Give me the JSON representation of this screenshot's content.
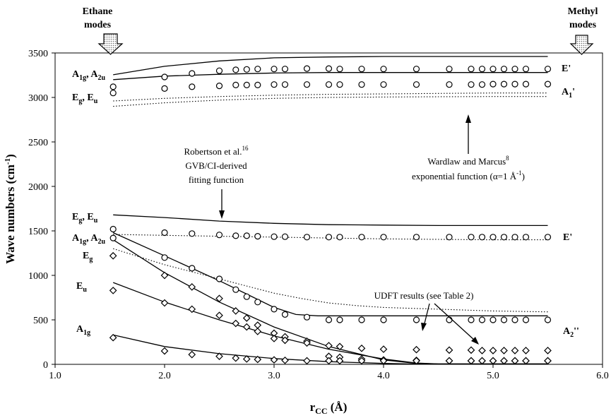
{
  "chart_data": {
    "type": "scatter",
    "xlabel": "r",
    "xlabel_sub": "CC",
    "xlabel_unit": " (Å)",
    "ylabel": "Wave numbers (cm",
    "ylabel_sup": "-1",
    "ylabel_end": ")",
    "xlim": [
      1.0,
      6.0
    ],
    "ylim": [
      0,
      3500
    ],
    "xticks": [
      {
        "v": 1.0,
        "label": "1.0"
      },
      {
        "v": 2.0,
        "label": "2.0"
      },
      {
        "v": 3.0,
        "label": "3.0"
      },
      {
        "v": 4.0,
        "label": "4.0"
      },
      {
        "v": 5.0,
        "label": "5.0"
      },
      {
        "v": 6.0,
        "label": "6.0"
      }
    ],
    "yticks": [
      {
        "v": 0,
        "label": "0"
      },
      {
        "v": 500,
        "label": "500"
      },
      {
        "v": 1000,
        "label": "1000"
      },
      {
        "v": 1500,
        "label": "1500"
      },
      {
        "v": 2000,
        "label": "2000"
      },
      {
        "v": 2500,
        "label": "2500"
      },
      {
        "v": 3000,
        "label": "3000"
      },
      {
        "v": 3500,
        "label": "3500"
      }
    ],
    "grid": false,
    "circle_series": [
      {
        "x": [
          1.53,
          2.0,
          2.25,
          2.5,
          2.65,
          2.75,
          2.85,
          3.0,
          3.1,
          3.3,
          3.5,
          3.6,
          3.8,
          4.0,
          4.3,
          4.6,
          4.8,
          4.9,
          5.0,
          5.1,
          5.2,
          5.3,
          5.5
        ],
        "y": [
          3120,
          3230,
          3270,
          3300,
          3310,
          3315,
          3320,
          3320,
          3320,
          3325,
          3325,
          3320,
          3320,
          3320,
          3320,
          3320,
          3320,
          3320,
          3320,
          3320,
          3320,
          3320,
          3320
        ]
      },
      {
        "x": [
          1.53,
          2.0,
          2.25,
          2.5,
          2.65,
          2.75,
          2.85,
          3.0,
          3.1,
          3.3,
          3.5,
          3.6,
          3.8,
          4.0,
          4.3,
          4.6,
          4.8,
          4.9,
          5.0,
          5.1,
          5.2,
          5.3,
          5.5
        ],
        "y": [
          3050,
          3100,
          3120,
          3130,
          3140,
          3140,
          3140,
          3145,
          3145,
          3145,
          3145,
          3145,
          3145,
          3145,
          3145,
          3145,
          3145,
          3145,
          3150,
          3150,
          3150,
          3150,
          3150
        ]
      },
      {
        "x": [
          1.53,
          2.0,
          2.25,
          2.5,
          2.65,
          2.75,
          2.85,
          3.0,
          3.1,
          3.3,
          3.5,
          3.6,
          3.8,
          4.0,
          4.3,
          4.6,
          4.8,
          4.9,
          5.0,
          5.1,
          5.2,
          5.3,
          5.5
        ],
        "y": [
          1520,
          1480,
          1470,
          1455,
          1445,
          1445,
          1440,
          1435,
          1435,
          1430,
          1430,
          1430,
          1430,
          1430,
          1430,
          1430,
          1430,
          1430,
          1430,
          1430,
          1430,
          1430,
          1430
        ]
      },
      {
        "x": [
          1.53,
          2.0,
          2.25,
          2.5,
          2.65,
          2.75,
          2.85,
          3.0,
          3.1,
          3.3,
          3.5,
          3.6,
          3.8,
          4.0,
          4.3,
          4.6,
          4.8,
          4.9,
          5.0,
          5.1,
          5.2,
          5.3,
          5.5
        ],
        "y": [
          1420,
          1200,
          1080,
          960,
          840,
          760,
          700,
          620,
          560,
          530,
          500,
          500,
          500,
          500,
          500,
          500,
          500,
          500,
          500,
          500,
          500,
          500,
          500
        ]
      }
    ],
    "diamond_series": [
      {
        "x": [
          1.53,
          2.0,
          2.25,
          2.5,
          2.65,
          2.75,
          2.85,
          3.0,
          3.1,
          3.3,
          3.5,
          3.6,
          3.8,
          4.0,
          4.3,
          4.6,
          4.8,
          4.9,
          5.0,
          5.1,
          5.2,
          5.3,
          5.5
        ],
        "y": [
          1220,
          1000,
          870,
          740,
          600,
          520,
          440,
          350,
          310,
          260,
          210,
          200,
          180,
          170,
          165,
          160,
          160,
          155,
          155,
          155,
          155,
          155,
          155
        ]
      },
      {
        "x": [
          1.53,
          2.0,
          2.25,
          2.5,
          2.65,
          2.75,
          2.85,
          3.0,
          3.1,
          3.3,
          3.5,
          3.6,
          3.8,
          4.0,
          4.3,
          4.6,
          4.8,
          4.9,
          5.0,
          5.1,
          5.2,
          5.3,
          5.5
        ],
        "y": [
          830,
          690,
          620,
          550,
          460,
          420,
          370,
          290,
          270,
          240,
          90,
          80,
          60,
          50,
          45,
          40,
          40,
          40,
          40,
          40,
          40,
          40,
          40
        ]
      },
      {
        "x": [
          1.53,
          2.0,
          2.25,
          2.5,
          2.65,
          2.75,
          2.85,
          3.0,
          3.1,
          3.3,
          3.5,
          3.6,
          3.8,
          4.0,
          4.3,
          4.6,
          4.8,
          4.9,
          5.0,
          5.1,
          5.2,
          5.3,
          5.5
        ],
        "y": [
          300,
          150,
          110,
          90,
          70,
          60,
          55,
          50,
          45,
          40,
          40,
          40,
          40,
          40,
          40,
          40,
          40,
          40,
          40,
          40,
          40,
          40,
          40
        ]
      }
    ],
    "solid_lines": [
      {
        "x": [
          1.53,
          2.0,
          2.5,
          3.0,
          3.5,
          4.0,
          4.5,
          5.0,
          5.5
        ],
        "y": [
          3255,
          3350,
          3410,
          3445,
          3455,
          3460,
          3460,
          3460,
          3460
        ]
      },
      {
        "x": [
          1.53,
          2.0,
          2.5,
          3.0,
          3.5,
          4.0,
          4.5,
          5.0,
          5.5
        ],
        "y": [
          3200,
          3240,
          3260,
          3275,
          3280,
          3280,
          3280,
          3280,
          3280
        ]
      },
      {
        "x": [
          1.53,
          2.0,
          2.5,
          3.0,
          3.5,
          4.0,
          4.5,
          5.0,
          5.5
        ],
        "y": [
          1680,
          1650,
          1610,
          1585,
          1570,
          1565,
          1560,
          1560,
          1560
        ]
      },
      {
        "x": [
          1.53,
          2.0,
          2.5,
          2.75,
          3.0,
          3.2,
          3.4,
          3.6,
          4.0,
          4.5,
          5.0,
          5.5
        ],
        "y": [
          1480,
          1220,
          940,
          790,
          640,
          560,
          545,
          545,
          545,
          545,
          545,
          545
        ]
      },
      {
        "x": [
          1.53,
          2.0,
          2.5,
          3.0,
          3.5,
          4.0,
          4.3,
          4.5,
          5.0,
          5.5
        ],
        "y": [
          1400,
          1030,
          700,
          420,
          200,
          50,
          10,
          5,
          5,
          5
        ]
      },
      {
        "x": [
          1.53,
          2.0,
          2.5,
          3.0,
          3.5,
          4.0,
          4.3,
          4.5,
          5.0,
          5.5
        ],
        "y": [
          920,
          700,
          500,
          320,
          170,
          60,
          15,
          5,
          5,
          5
        ]
      },
      {
        "x": [
          1.53,
          2.0,
          2.5,
          3.0,
          3.5,
          4.0,
          4.3,
          4.5,
          5.0,
          5.5
        ],
        "y": [
          330,
          200,
          120,
          65,
          30,
          10,
          3,
          2,
          2,
          2
        ]
      }
    ],
    "dotted_lines": [
      {
        "x": [
          1.53,
          2.0,
          2.5,
          3.0,
          3.5,
          4.0,
          4.5,
          5.0,
          5.5
        ],
        "y": [
          2960,
          2990,
          3010,
          3025,
          3035,
          3040,
          3045,
          3050,
          3050
        ]
      },
      {
        "x": [
          1.53,
          2.0,
          2.5,
          3.0,
          3.5,
          4.0,
          4.5,
          5.0,
          5.5
        ],
        "y": [
          2900,
          2940,
          2970,
          2990,
          3000,
          3005,
          3008,
          3010,
          3010
        ]
      },
      {
        "x": [
          1.53,
          2.0,
          2.5,
          3.0,
          3.5,
          4.0,
          4.5,
          5.0,
          5.5
        ],
        "y": [
          1460,
          1450,
          1440,
          1430,
          1420,
          1410,
          1405,
          1400,
          1400
        ]
      },
      {
        "x": [
          1.53,
          2.0,
          2.5,
          2.75,
          3.0,
          3.25,
          3.5,
          3.75,
          4.0,
          4.5,
          5.0,
          5.5
        ],
        "y": [
          1300,
          1120,
          960,
          880,
          800,
          740,
          690,
          660,
          640,
          620,
          600,
          590
        ]
      }
    ],
    "annotations": {
      "ethane_1": "Ethane",
      "ethane_2": "modes",
      "methyl_1": "Methyl",
      "methyl_2": "modes",
      "wardlaw_1": "Wardlaw and Marcus",
      "wardlaw_1_sup": "8",
      "wardlaw_2": "exponential function (α=1 Å",
      "wardlaw_2_sup": "-1",
      "wardlaw_2_end": ")",
      "robertson_1": "Robertson et al.",
      "robertson_1_sup": "16",
      "robertson_2": "GVB/CI-derived",
      "robertson_3": "fitting function",
      "udft": "UDFT results (see Table 2)"
    },
    "left_labels": [
      {
        "id": "A1g_A2u_top",
        "a": "A",
        "a_sub": "1g",
        "sep": ", ",
        "b": "A",
        "b_sub": "2u"
      },
      {
        "id": "Eg_Eu_top",
        "a": "E",
        "a_sub": "g",
        "sep": ", ",
        "b": "E",
        "b_sub": "u"
      },
      {
        "id": "Eg_Eu_mid",
        "a": "E",
        "a_sub": "g",
        "sep": ", ",
        "b": "E",
        "b_sub": "u"
      },
      {
        "id": "A1g_A2u_mid",
        "a": "A",
        "a_sub": "1g",
        "sep": ", ",
        "b": "A",
        "b_sub": "2u"
      },
      {
        "id": "Eg_low",
        "a": "E",
        "a_sub": "g"
      },
      {
        "id": "Eu_low",
        "a": "E",
        "a_sub": "u"
      },
      {
        "id": "A1g_low",
        "a": "A",
        "a_sub": "1g"
      }
    ],
    "right_labels": [
      {
        "id": "E_prime_top",
        "text": "E'"
      },
      {
        "id": "A1_prime",
        "text": "A",
        "sub": "1",
        "after": "'"
      },
      {
        "id": "E_prime_mid",
        "text": "E'"
      },
      {
        "id": "A2_dprime",
        "text": "A",
        "sub": "2",
        "after": "''"
      }
    ]
  }
}
